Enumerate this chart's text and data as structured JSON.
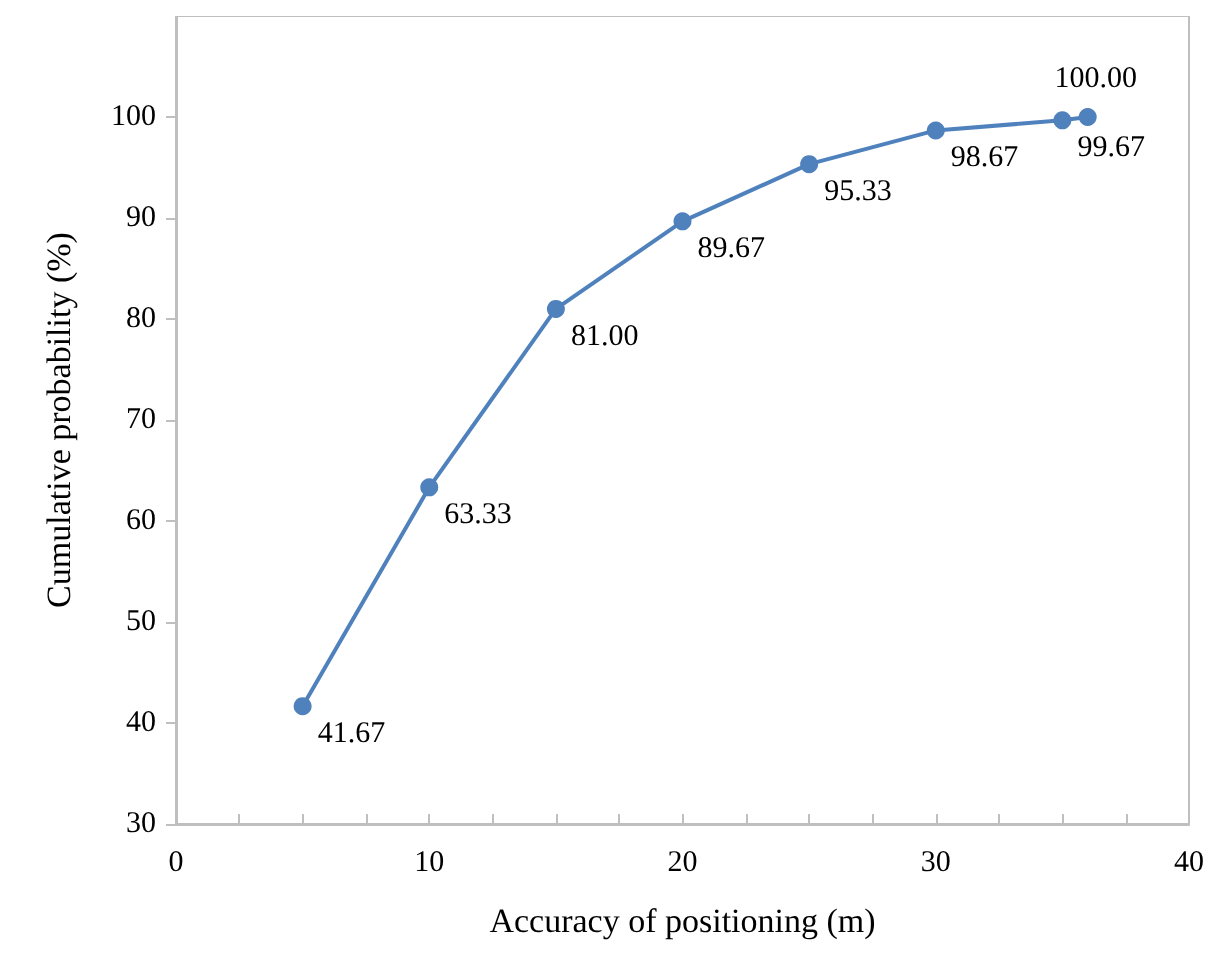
{
  "chart_data": {
    "type": "line",
    "xlabel": "Accuracy of positioning (m)",
    "ylabel": "Cumulative probability (%)",
    "x": [
      5,
      10,
      15,
      20,
      25,
      30,
      35,
      36
    ],
    "series": [
      {
        "color": "#4f81bd",
        "values": [
          41.67,
          63.33,
          81.0,
          89.67,
          95.33,
          98.67,
          99.67,
          100.0
        ],
        "value_labels": [
          "41.67",
          "63.33",
          "81.00",
          "89.67",
          "95.33",
          "98.67",
          "99.67",
          "100.00"
        ]
      }
    ],
    "xlim": [
      0,
      40
    ],
    "xticks": [
      0,
      {
        "value": 2.5,
        "label": null
      },
      {
        "value": 5,
        "label": null
      },
      {
        "value": 7.5,
        "label": null
      },
      10,
      {
        "value": 12.5,
        "label": null
      },
      {
        "value": 15,
        "label": null
      },
      {
        "value": 17.5,
        "label": null
      },
      20,
      {
        "value": 22.5,
        "label": null
      },
      {
        "value": 25,
        "label": null
      },
      {
        "value": 27.5,
        "label": null
      },
      30,
      {
        "value": 32.5,
        "label": null
      },
      {
        "value": 35,
        "label": null
      },
      {
        "value": 37.5,
        "label": null
      },
      40
    ],
    "ylim": [
      30,
      110
    ],
    "yticks": [
      30,
      40,
      50,
      60,
      70,
      80,
      90,
      100
    ],
    "marker": "circle",
    "line_style": "solid",
    "grid": false
  }
}
